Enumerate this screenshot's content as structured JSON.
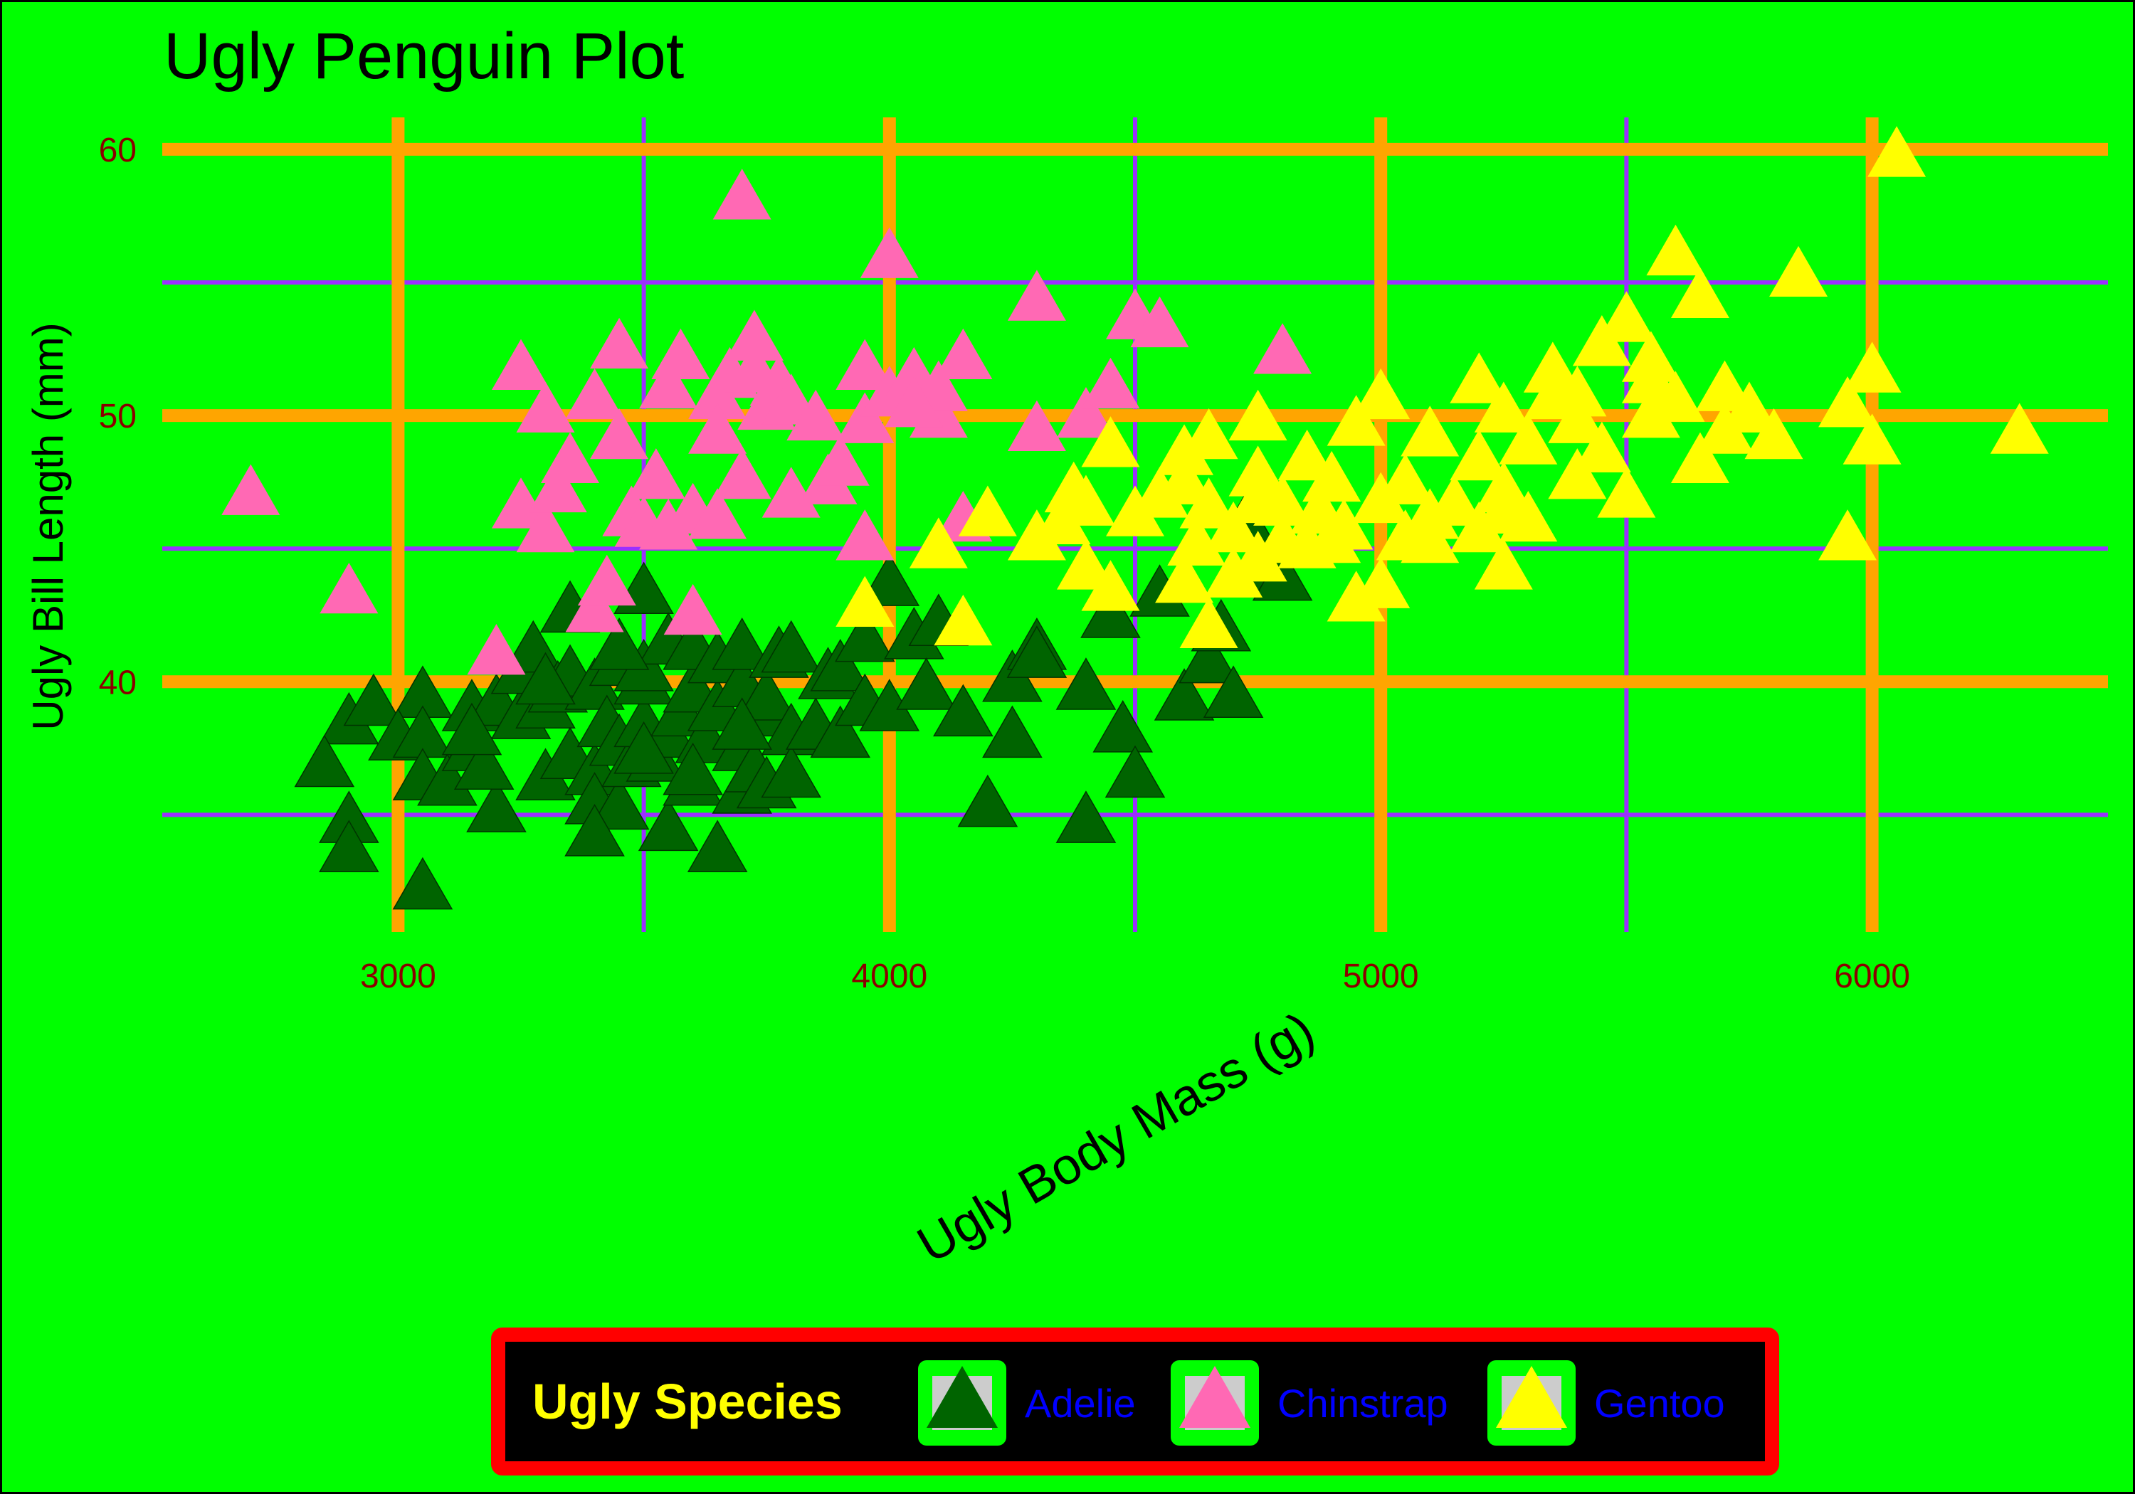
{
  "chart_data": {
    "type": "scatter",
    "title": "Ugly Penguin Plot",
    "xlabel": "Ugly Body Mass (g)",
    "ylabel": "Ugly Bill Length (mm)",
    "xlim": [
      2520,
      6480
    ],
    "ylim": [
      30.6,
      61.2
    ],
    "x_ticks": [
      3000,
      4000,
      5000,
      6000
    ],
    "x_tick_labels": [
      "3000",
      "4000",
      "5000",
      "6000"
    ],
    "x_minor_ticks": [
      3500,
      4500,
      5500
    ],
    "y_ticks": [
      40,
      50,
      60
    ],
    "y_tick_labels": [
      "40",
      "50",
      "60"
    ],
    "y_minor_ticks": [
      35,
      45,
      55
    ],
    "grid": true,
    "marker": "triangle",
    "legend": {
      "title": "Ugly Species",
      "position": "bottom",
      "entries": [
        "Adelie",
        "Chinstrap",
        "Gentoo"
      ]
    },
    "colors": {
      "background": "#00ff00",
      "major_grid": "#ffa500",
      "minor_grid": "#9b30ff",
      "tick_label": "#8b0000",
      "legend_fill": "#000000",
      "legend_border": "#ff0000",
      "legend_title": "#ffff00",
      "legend_label": "#0000ff",
      "legend_key_fill": "#00ff00",
      "Adelie": "#006400",
      "Chinstrap": "#ff69b4",
      "Gentoo": "#ffff00"
    },
    "series": [
      {
        "name": "Adelie",
        "points": [
          [
            2900,
            38.3
          ],
          [
            2950,
            39.0
          ],
          [
            3050,
            39.3
          ],
          [
            2850,
            36.7
          ],
          [
            2900,
            34.6
          ],
          [
            2900,
            33.5
          ],
          [
            3050,
            32.1
          ],
          [
            3000,
            37.7
          ],
          [
            3050,
            37.8
          ],
          [
            3050,
            36.2
          ],
          [
            3100,
            36.0
          ],
          [
            3150,
            37.3
          ],
          [
            3150,
            38.8
          ],
          [
            3200,
            35.0
          ],
          [
            3175,
            36.6
          ],
          [
            3200,
            39.0
          ],
          [
            3250,
            38.5
          ],
          [
            3250,
            40.2
          ],
          [
            3275,
            41.0
          ],
          [
            3300,
            36.2
          ],
          [
            3300,
            38.9
          ],
          [
            3325,
            39.5
          ],
          [
            3350,
            37.0
          ],
          [
            3350,
            40.1
          ],
          [
            3400,
            36.4
          ],
          [
            3400,
            35.3
          ],
          [
            3400,
            39.6
          ],
          [
            3425,
            38.2
          ],
          [
            3450,
            37.5
          ],
          [
            3450,
            40.5
          ],
          [
            3450,
            35.1
          ],
          [
            3475,
            36.7
          ],
          [
            3500,
            43.2
          ],
          [
            3500,
            38.2
          ],
          [
            3500,
            39.8
          ],
          [
            3500,
            40.3
          ],
          [
            3525,
            36.9
          ],
          [
            3550,
            37.8
          ],
          [
            3550,
            34.3
          ],
          [
            3550,
            41.3
          ],
          [
            3575,
            38.6
          ],
          [
            3600,
            36.0
          ],
          [
            3600,
            39.5
          ],
          [
            3600,
            41.1
          ],
          [
            3625,
            37.6
          ],
          [
            3650,
            38.8
          ],
          [
            3650,
            40.6
          ],
          [
            3650,
            33.5
          ],
          [
            3700,
            37.3
          ],
          [
            3700,
            35.7
          ],
          [
            3700,
            39.7
          ],
          [
            3700,
            41.1
          ],
          [
            3725,
            36.5
          ],
          [
            3750,
            38.6
          ],
          [
            3750,
            39.2
          ],
          [
            3750,
            35.9
          ],
          [
            3775,
            40.8
          ],
          [
            3800,
            37.9
          ],
          [
            3800,
            41.0
          ],
          [
            3800,
            36.3
          ],
          [
            3850,
            38.1
          ],
          [
            3875,
            40.0
          ],
          [
            3900,
            37.8
          ],
          [
            3900,
            40.3
          ],
          [
            3950,
            39.0
          ],
          [
            3950,
            41.4
          ],
          [
            4000,
            38.8
          ],
          [
            4000,
            43.5
          ],
          [
            4050,
            41.5
          ],
          [
            4075,
            39.6
          ],
          [
            4100,
            42.0
          ],
          [
            4150,
            38.6
          ],
          [
            4200,
            35.2
          ],
          [
            4250,
            39.9
          ],
          [
            4250,
            37.8
          ],
          [
            4300,
            41.1
          ],
          [
            4300,
            40.8
          ],
          [
            4400,
            39.6
          ],
          [
            4400,
            34.6
          ],
          [
            4450,
            42.3
          ],
          [
            4475,
            38.0
          ],
          [
            4500,
            36.3
          ],
          [
            4550,
            43.1
          ],
          [
            4600,
            39.2
          ],
          [
            4650,
            40.6
          ],
          [
            4675,
            41.8
          ],
          [
            4700,
            39.3
          ],
          [
            4725,
            45.8
          ],
          [
            4775,
            44.0
          ],
          [
            4800,
            43.7
          ],
          [
            3350,
            42.5
          ],
          [
            3150,
            37.9
          ],
          [
            3400,
            34.1
          ],
          [
            3600,
            36.4
          ],
          [
            3700,
            38.1
          ],
          [
            3500,
            37.2
          ],
          [
            3300,
            39.8
          ],
          [
            3450,
            41.1
          ]
        ]
      },
      {
        "name": "Chinstrap",
        "points": [
          [
            2700,
            46.9
          ],
          [
            2900,
            43.2
          ],
          [
            3200,
            40.9
          ],
          [
            3250,
            51.6
          ],
          [
            3250,
            46.4
          ],
          [
            3300,
            50.0
          ],
          [
            3300,
            45.5
          ],
          [
            3325,
            47.0
          ],
          [
            3350,
            48.1
          ],
          [
            3400,
            42.5
          ],
          [
            3400,
            50.5
          ],
          [
            3425,
            43.5
          ],
          [
            3450,
            52.4
          ],
          [
            3450,
            49.0
          ],
          [
            3475,
            46.1
          ],
          [
            3500,
            45.7
          ],
          [
            3525,
            47.5
          ],
          [
            3550,
            50.9
          ],
          [
            3575,
            52.0
          ],
          [
            3600,
            42.4
          ],
          [
            3600,
            46.2
          ],
          [
            3650,
            50.5
          ],
          [
            3650,
            46.0
          ],
          [
            3675,
            51.3
          ],
          [
            3700,
            58.0
          ],
          [
            3700,
            47.5
          ],
          [
            3725,
            52.7
          ],
          [
            3725,
            51.5
          ],
          [
            3750,
            50.1
          ],
          [
            3775,
            51.0
          ],
          [
            3800,
            46.8
          ],
          [
            3800,
            50.3
          ],
          [
            3850,
            49.7
          ],
          [
            3875,
            47.3
          ],
          [
            3900,
            48.0
          ],
          [
            3950,
            49.6
          ],
          [
            3950,
            51.6
          ],
          [
            3950,
            45.2
          ],
          [
            4000,
            55.8
          ],
          [
            4000,
            50.6
          ],
          [
            4050,
            51.3
          ],
          [
            4100,
            49.8
          ],
          [
            4100,
            50.8
          ],
          [
            4150,
            52.0
          ],
          [
            4150,
            45.9
          ],
          [
            4300,
            54.2
          ],
          [
            4300,
            49.3
          ],
          [
            4400,
            49.8
          ],
          [
            4450,
            50.9
          ],
          [
            4500,
            53.5
          ],
          [
            4550,
            53.2
          ],
          [
            4800,
            52.2
          ],
          [
            3550,
            45.6
          ],
          [
            3650,
            49.2
          ],
          [
            4050,
            50.2
          ]
        ]
      },
      {
        "name": "Gentoo",
        "points": [
          [
            3950,
            42.7
          ],
          [
            4100,
            44.9
          ],
          [
            4150,
            42.0
          ],
          [
            4200,
            46.1
          ],
          [
            4300,
            45.2
          ],
          [
            4350,
            45.8
          ],
          [
            4375,
            47.0
          ],
          [
            4400,
            46.5
          ],
          [
            4400,
            44.1
          ],
          [
            4450,
            43.3
          ],
          [
            4450,
            48.7
          ],
          [
            4500,
            46.1
          ],
          [
            4550,
            46.8
          ],
          [
            4600,
            43.6
          ],
          [
            4600,
            48.4
          ],
          [
            4625,
            45.0
          ],
          [
            4650,
            46.4
          ],
          [
            4650,
            41.9
          ],
          [
            4650,
            49.0
          ],
          [
            4700,
            43.8
          ],
          [
            4700,
            45.5
          ],
          [
            4750,
            47.6
          ],
          [
            4750,
            49.7
          ],
          [
            4750,
            44.4
          ],
          [
            4800,
            46.5
          ],
          [
            4800,
            45.1
          ],
          [
            4850,
            48.2
          ],
          [
            4850,
            44.9
          ],
          [
            4875,
            46.2
          ],
          [
            4900,
            47.4
          ],
          [
            4925,
            45.6
          ],
          [
            4950,
            49.5
          ],
          [
            4950,
            42.9
          ],
          [
            5000,
            46.6
          ],
          [
            5000,
            43.4
          ],
          [
            5000,
            50.5
          ],
          [
            5050,
            45.2
          ],
          [
            5050,
            47.3
          ],
          [
            5100,
            45.1
          ],
          [
            5100,
            49.1
          ],
          [
            5150,
            46.5
          ],
          [
            5200,
            48.2
          ],
          [
            5200,
            45.5
          ],
          [
            5200,
            51.1
          ],
          [
            5250,
            46.2
          ],
          [
            5250,
            44.1
          ],
          [
            5250,
            50.0
          ],
          [
            5300,
            48.8
          ],
          [
            5300,
            45.9
          ],
          [
            5350,
            50.5
          ],
          [
            5350,
            51.5
          ],
          [
            5400,
            49.6
          ],
          [
            5400,
            47.5
          ],
          [
            5450,
            52.5
          ],
          [
            5450,
            48.5
          ],
          [
            5500,
            53.4
          ],
          [
            5500,
            46.8
          ],
          [
            5550,
            51.1
          ],
          [
            5550,
            49.8
          ],
          [
            5600,
            55.9
          ],
          [
            5600,
            50.4
          ],
          [
            5650,
            54.3
          ],
          [
            5650,
            48.1
          ],
          [
            5700,
            50.8
          ],
          [
            5700,
            49.2
          ],
          [
            5750,
            50.0
          ],
          [
            5800,
            49.0
          ],
          [
            5850,
            55.1
          ],
          [
            5950,
            45.2
          ],
          [
            5950,
            50.2
          ],
          [
            6000,
            51.5
          ],
          [
            6000,
            48.8
          ],
          [
            6050,
            59.6
          ],
          [
            6300,
            49.2
          ],
          [
            5250,
            47.0
          ],
          [
            5400,
            50.6
          ],
          [
            5550,
            51.9
          ],
          [
            5100,
            46.0
          ],
          [
            4900,
            45.1
          ],
          [
            4750,
            46.6
          ],
          [
            4600,
            47.3
          ]
        ]
      }
    ]
  }
}
